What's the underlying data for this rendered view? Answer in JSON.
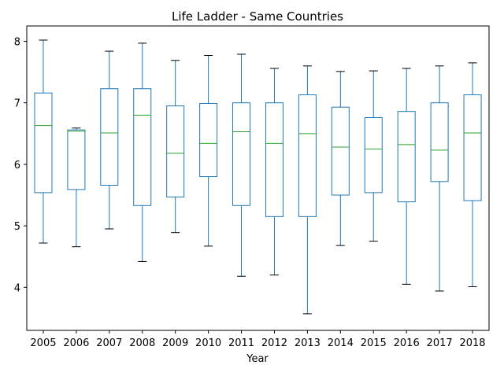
{
  "chart_data": {
    "type": "box",
    "title": "Life Ladder - Same Countries",
    "xlabel": "Year",
    "ylabel": "",
    "ylim": [
      3.3,
      8.25
    ],
    "yticks": [
      4,
      5,
      6,
      7,
      8
    ],
    "grid": false,
    "colors": {
      "box": "#1f77b4",
      "median": "#2ca02c",
      "cap": "#000000"
    },
    "categories": [
      "2005",
      "2006",
      "2007",
      "2008",
      "2009",
      "2010",
      "2011",
      "2012",
      "2013",
      "2014",
      "2015",
      "2016",
      "2017",
      "2018"
    ],
    "boxes": [
      {
        "whisker_low": 4.72,
        "q1": 5.54,
        "median": 6.63,
        "q3": 7.16,
        "whisker_high": 8.02
      },
      {
        "whisker_low": 4.66,
        "q1": 5.59,
        "median": 6.54,
        "q3": 6.56,
        "whisker_high": 6.59
      },
      {
        "whisker_low": 4.95,
        "q1": 5.66,
        "median": 6.51,
        "q3": 7.23,
        "whisker_high": 7.84
      },
      {
        "whisker_low": 4.42,
        "q1": 5.33,
        "median": 6.8,
        "q3": 7.23,
        "whisker_high": 7.97
      },
      {
        "whisker_low": 4.89,
        "q1": 5.47,
        "median": 6.18,
        "q3": 6.95,
        "whisker_high": 7.69
      },
      {
        "whisker_low": 4.67,
        "q1": 5.8,
        "median": 6.34,
        "q3": 6.99,
        "whisker_high": 7.77
      },
      {
        "whisker_low": 4.18,
        "q1": 5.33,
        "median": 6.53,
        "q3": 7.0,
        "whisker_high": 7.79
      },
      {
        "whisker_low": 4.2,
        "q1": 5.15,
        "median": 6.34,
        "q3": 7.0,
        "whisker_high": 7.56
      },
      {
        "whisker_low": 3.57,
        "q1": 5.15,
        "median": 6.5,
        "q3": 7.13,
        "whisker_high": 7.6
      },
      {
        "whisker_low": 4.68,
        "q1": 5.5,
        "median": 6.28,
        "q3": 6.93,
        "whisker_high": 7.51
      },
      {
        "whisker_low": 4.75,
        "q1": 5.54,
        "median": 6.25,
        "q3": 6.76,
        "whisker_high": 7.52
      },
      {
        "whisker_low": 4.05,
        "q1": 5.39,
        "median": 6.32,
        "q3": 6.86,
        "whisker_high": 7.56
      },
      {
        "whisker_low": 3.94,
        "q1": 5.72,
        "median": 6.23,
        "q3": 7.0,
        "whisker_high": 7.6
      },
      {
        "whisker_low": 4.01,
        "q1": 5.41,
        "median": 6.51,
        "q3": 7.13,
        "whisker_high": 7.65
      }
    ]
  }
}
